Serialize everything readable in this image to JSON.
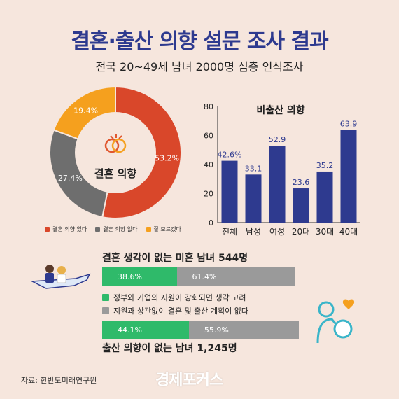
{
  "title": "결혼·출산 의향 설문 조사 결과",
  "subtitle": "전국 20~49세 남녀 2000명 심층 인식조사",
  "chart_data": [
    {
      "type": "pie",
      "title": "결혼 의향",
      "labels": [
        "결혼 의향 있다",
        "결혼 의향 없다",
        "잘 모르겠다"
      ],
      "values": [
        53.2,
        27.4,
        19.4
      ],
      "value_labels": [
        "53.2%",
        "27.4%",
        "19.4%"
      ],
      "colors": [
        "#d9472a",
        "#6e6e6e",
        "#f5a01e"
      ],
      "legend_position": "bottom"
    },
    {
      "type": "bar",
      "title": "비출산 의향",
      "categories": [
        "전체",
        "남성",
        "여성",
        "20대",
        "30대",
        "40대"
      ],
      "values": [
        42.6,
        33.1,
        52.9,
        23.6,
        35.2,
        63.9
      ],
      "value_labels": [
        "42.6%",
        "33.1",
        "52.9",
        "23.6",
        "35.2",
        "63.9"
      ],
      "yticks": [
        "0",
        "20",
        "40",
        "60",
        "80"
      ],
      "ylim": [
        0,
        80
      ],
      "color": "#2e3a8f"
    },
    {
      "type": "bar",
      "orientation": "horizontal-stacked",
      "title": "결혼 생각이 없는 미혼 남녀 544명",
      "series": [
        {
          "name": "정부와 기업의 지원이 강화되면 생각 고려",
          "value": 38.6,
          "label": "38.6%"
        },
        {
          "name": "지원과 상관없이 결혼 및 출산 계획이 없다",
          "value": 61.4,
          "label": "61.4%"
        }
      ]
    },
    {
      "type": "bar",
      "orientation": "horizontal-stacked",
      "title": "출산 의향이 없는 남녀 1,245명",
      "series": [
        {
          "name": "정부와 기업의 지원이 강화되면 생각 고려",
          "value": 44.1,
          "label": "44.1%"
        },
        {
          "name": "지원과 상관없이 결혼 및 출산 계획이 없다",
          "value": 55.9,
          "label": "55.9%"
        }
      ]
    }
  ],
  "colors": {
    "green": "#2fba6a",
    "gray": "#9a9a9a",
    "navy": "#2e3a8f",
    "accent": "#f5a01e"
  },
  "source": "자료: 한반도미래연구원",
  "brand": "경제포커스"
}
